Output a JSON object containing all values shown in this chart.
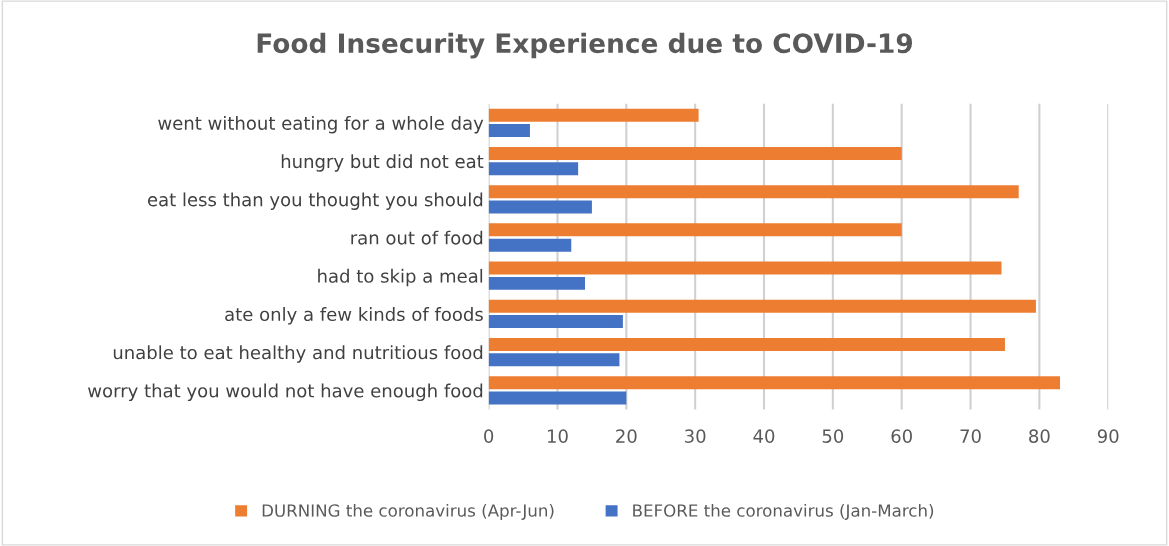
{
  "chart_data": {
    "type": "bar",
    "orientation": "horizontal",
    "title": "Food Insecurity Experience due to COVID-19",
    "categories": [
      "went without eating for a whole day",
      "hungry but did not eat",
      "eat less than you thought you should",
      "ran out of food",
      "had to skip a meal",
      "ate only a few kinds of foods",
      "unable to eat healthy and nutritious food",
      "worry that you would not have enough food"
    ],
    "series": [
      {
        "name": "DURNING the coronavirus (Apr-Jun)",
        "color": "#ed7d31",
        "values": [
          30.5,
          60,
          77,
          60,
          74.5,
          79.5,
          75,
          83
        ]
      },
      {
        "name": "BEFORE the coronavirus (Jan-March)",
        "color": "#4472c4",
        "values": [
          6,
          13,
          15,
          12,
          14,
          19.5,
          19,
          20
        ]
      }
    ],
    "xlim": [
      0,
      90
    ],
    "xticks": [
      0,
      10,
      20,
      30,
      40,
      50,
      60,
      70,
      80,
      90
    ],
    "grid": "x",
    "legend": "bottom"
  }
}
